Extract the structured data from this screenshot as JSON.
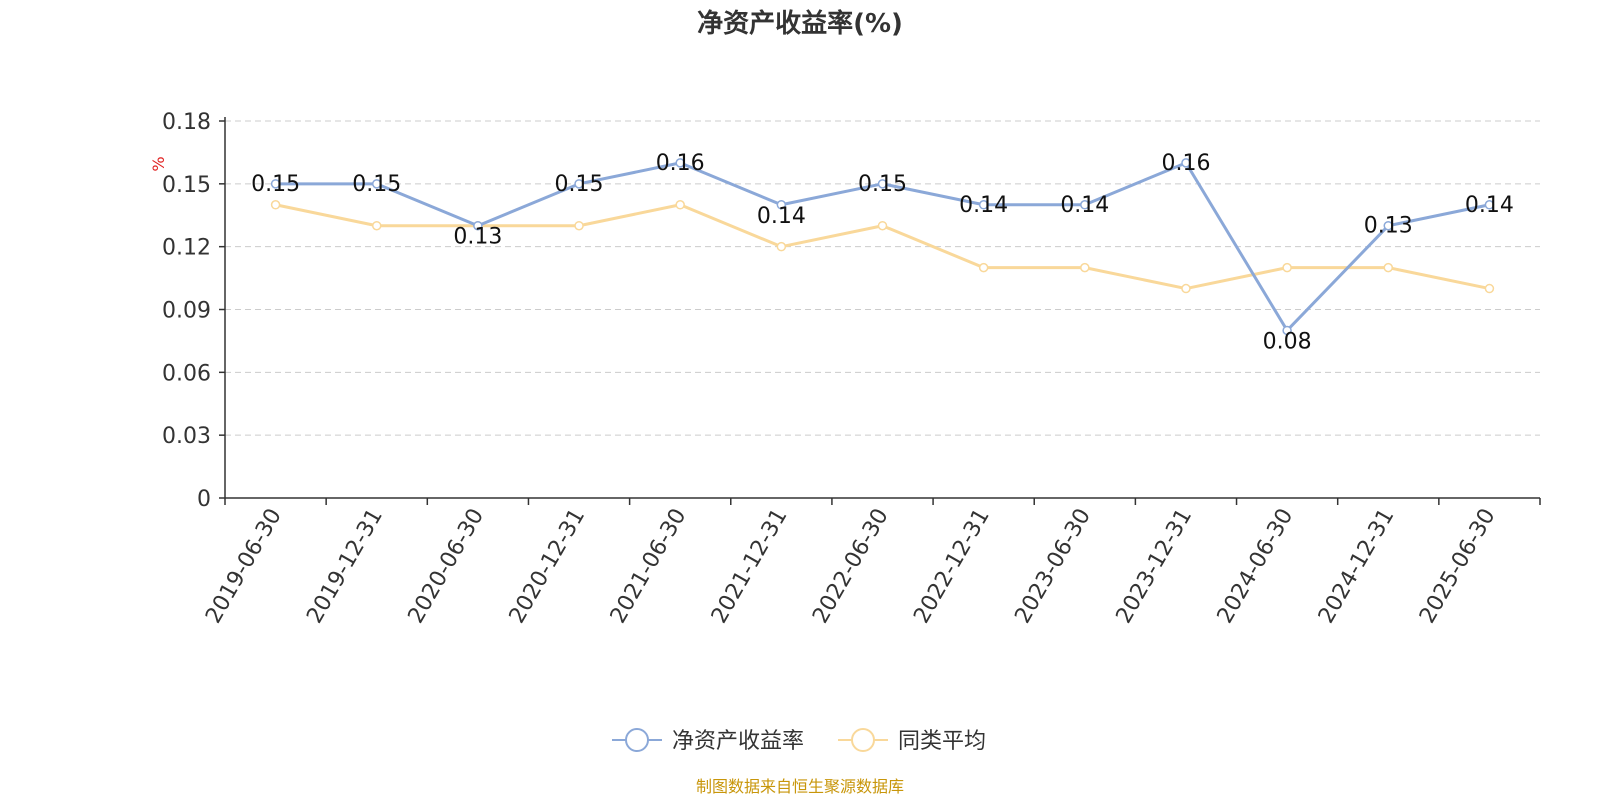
{
  "chart_data": {
    "type": "line",
    "title": "净资产收益率(%)",
    "ylabel": "%",
    "ylim": [
      0,
      0.18
    ],
    "yticks": [
      0,
      0.03,
      0.06,
      0.09,
      0.12,
      0.15,
      0.18
    ],
    "grid": true,
    "legend_position": "bottom-center",
    "x": [
      "2019-06-30",
      "2019-12-31",
      "2020-06-30",
      "2020-12-31",
      "2021-06-30",
      "2021-12-31",
      "2022-06-30",
      "2022-12-31",
      "2023-06-30",
      "2023-12-31",
      "2024-06-30",
      "2024-12-31",
      "2025-06-30"
    ],
    "series": [
      {
        "name": "净资产收益率",
        "color": "#8ba8d8",
        "values": [
          0.15,
          0.15,
          0.13,
          0.15,
          0.16,
          0.14,
          0.15,
          0.14,
          0.14,
          0.16,
          0.08,
          0.13,
          0.14
        ],
        "labels": [
          "0.15",
          "0.15",
          "0.13",
          "0.15",
          "0.16",
          "0.14",
          "0.15",
          "0.14",
          "0.14",
          "0.16",
          "0.08",
          "0.13",
          "0.14"
        ]
      },
      {
        "name": "同类平均",
        "color": "#f9d89a",
        "values": [
          0.14,
          0.13,
          0.13,
          0.13,
          0.14,
          0.12,
          0.13,
          0.11,
          0.11,
          0.1,
          0.11,
          0.11,
          0.1
        ]
      }
    ]
  },
  "source": "制图数据来自恒生聚源数据库",
  "colors": {
    "axis": "#333333",
    "grid": "#cccccc",
    "unit": "#e02020",
    "source": "#c8960a"
  }
}
